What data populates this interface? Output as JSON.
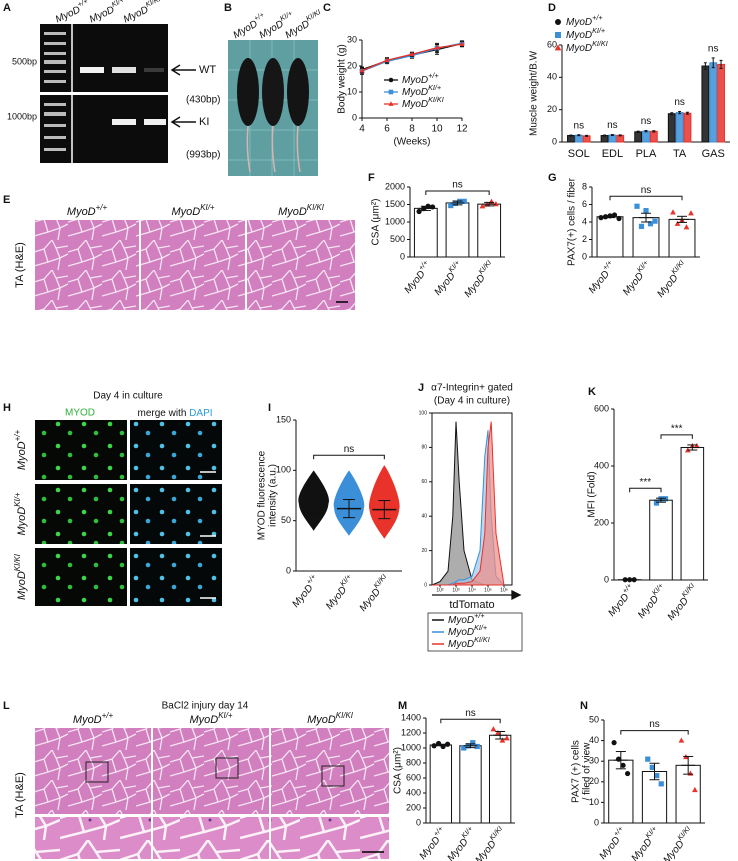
{
  "figure": {
    "genotypes": [
      {
        "text": "MyoD",
        "sup": "+/+"
      },
      {
        "text": "MyoD",
        "sup": "KI/+"
      },
      {
        "text": "MyoD",
        "sup": "KI/KI"
      }
    ],
    "A": {
      "label": "A",
      "markers": [
        "500bp",
        "1000bp"
      ],
      "bands": [
        {
          "name": "WT",
          "size": "(430bp)"
        },
        {
          "name": "KI",
          "size": "(993bp)"
        }
      ]
    },
    "B": {
      "label": "B"
    },
    "E": {
      "label": "E",
      "side_label": "TA (H&E)"
    },
    "H": {
      "label": "H",
      "title": "Day 4 in culture",
      "channel": "MYOD",
      "merge": "merge with ",
      "merge_stain": "DAPI"
    },
    "L": {
      "label": "L",
      "title": "BaCl2 injury day 14",
      "side_label": "TA (H&E)"
    }
  },
  "chart_data": [
    {
      "label": "C",
      "type": "line",
      "y_label": "Body weight (g)",
      "x_label": "(Weeks)",
      "x": [
        4,
        6,
        8,
        10,
        12
      ],
      "xlim": [
        4,
        12
      ],
      "xticks": [
        4,
        6,
        8,
        10,
        12
      ],
      "ylim": [
        0,
        30
      ],
      "yticks": [
        0,
        10,
        20,
        30
      ],
      "legend": "lower right",
      "series": [
        {
          "name": "MyoD",
          "sup": "+/+",
          "color": "#111111",
          "marker": "circle",
          "values": [
            18.6,
            22.0,
            24.2,
            26.3,
            28.6
          ],
          "errors": [
            1.0,
            0.8,
            0.9,
            1.8,
            1.0
          ]
        },
        {
          "name": "MyoD",
          "sup": "KI/+",
          "color": "#3a8fd8",
          "marker": "square",
          "values": [
            18.0,
            21.8,
            24.0,
            26.8,
            28.8
          ],
          "errors": [
            1.2,
            0.9,
            1.0,
            1.5,
            0.9
          ]
        },
        {
          "name": "MyoD",
          "sup": "KI/KI",
          "color": "#e8322a",
          "marker": "triangle",
          "values": [
            18.2,
            22.2,
            24.5,
            27.0,
            28.4
          ],
          "errors": [
            0.9,
            1.0,
            0.8,
            1.7,
            1.0
          ]
        }
      ]
    },
    {
      "label": "D",
      "type": "grouped-bar",
      "y_label": "Muscle weight/B.W",
      "categories": [
        "SOL",
        "EDL",
        "PLA",
        "TA",
        "GAS"
      ],
      "ylim": [
        0,
        60
      ],
      "yticks": [
        0,
        20,
        40,
        60
      ],
      "legend": "upper left",
      "annotations": [
        "ns",
        "ns",
        "ns",
        "ns",
        "ns"
      ],
      "series": [
        {
          "name": "MyoD",
          "sup": "+/+",
          "color": "#111111",
          "marker": "circle",
          "values": [
            4.0,
            4.0,
            6.3,
            17.5,
            47
          ],
          "errors": [
            0.3,
            0.3,
            0.4,
            0.6,
            2.0
          ]
        },
        {
          "name": "MyoD",
          "sup": "KI/+",
          "color": "#3a8fd8",
          "marker": "square",
          "values": [
            4.2,
            4.3,
            6.7,
            18.2,
            49
          ],
          "errors": [
            0.3,
            0.3,
            0.4,
            0.7,
            3.0
          ]
        },
        {
          "name": "MyoD",
          "sup": "KI/KI",
          "color": "#e8322a",
          "marker": "triangle",
          "values": [
            3.8,
            4.1,
            6.6,
            17.8,
            48
          ],
          "errors": [
            0.3,
            0.3,
            0.4,
            0.6,
            2.5
          ]
        }
      ]
    },
    {
      "label": "F",
      "type": "bar",
      "y_label": "CSA (μm²)",
      "categories": [
        {
          "text": "MyoD",
          "sup": "+/+"
        },
        {
          "text": "MyoD",
          "sup": "KI/+"
        },
        {
          "text": "MyoD",
          "sup": "KI/KI"
        }
      ],
      "ylim": [
        0,
        2000
      ],
      "yticks": [
        0,
        500,
        1000,
        1500,
        2000
      ],
      "colors": [
        "#111111",
        "#3a8fd8",
        "#e8322a"
      ],
      "markers": [
        "circle",
        "square",
        "triangle"
      ],
      "values": [
        1390,
        1545,
        1510
      ],
      "errors": [
        60,
        55,
        50
      ],
      "points": [
        [
          1300,
          1380,
          1450,
          1430
        ],
        [
          1470,
          1530,
          1590,
          1590
        ],
        [
          1450,
          1500,
          1580,
          1510
        ]
      ],
      "annotations": [
        {
          "text": "ns",
          "from": 0,
          "to": 2
        }
      ]
    },
    {
      "label": "G",
      "type": "bar",
      "y_label": "PAX7(+) cells / fiber",
      "categories": [
        {
          "text": "MyoD",
          "sup": "+/+"
        },
        {
          "text": "MyoD",
          "sup": "KI/+"
        },
        {
          "text": "MyoD",
          "sup": "KI/KI"
        }
      ],
      "ylim": [
        0,
        8
      ],
      "yticks": [
        0,
        2,
        4,
        6,
        8
      ],
      "colors": [
        "#111111",
        "#3a8fd8",
        "#e8322a"
      ],
      "markers": [
        "circle",
        "square",
        "triangle"
      ],
      "values": [
        4.6,
        4.5,
        4.3
      ],
      "errors": [
        0.1,
        0.5,
        0.35
      ],
      "points": [
        [
          4.5,
          4.6,
          4.7,
          4.8,
          4.4
        ],
        [
          5.8,
          3.5,
          5.3,
          3.8,
          4.1
        ],
        [
          5.1,
          3.8,
          4.2,
          3.4,
          5.0
        ]
      ],
      "annotations": [
        {
          "text": "ns",
          "from": 0,
          "to": 2
        }
      ]
    },
    {
      "label": "I",
      "type": "dot",
      "y_label": [
        "MYOD fluorescence",
        "intensity (a.u.)"
      ],
      "categories": [
        {
          "text": "MyoD",
          "sup": "+/+"
        },
        {
          "text": "MyoD",
          "sup": "KI/+"
        },
        {
          "text": "MyoD",
          "sup": "KI/KI"
        }
      ],
      "ylim": [
        0,
        150
      ],
      "yticks": [
        0,
        50,
        100,
        150
      ],
      "colors": [
        "#111111",
        "#3a8fd8",
        "#e8322a"
      ],
      "values": [
        67,
        62,
        61
      ],
      "errors": [
        9,
        9,
        9
      ],
      "ranges": [
        [
          40,
          100
        ],
        [
          35,
          100
        ],
        [
          32,
          105
        ]
      ],
      "annotations": [
        {
          "text": "ns",
          "from": 0,
          "to": 2
        }
      ]
    },
    {
      "label": "J",
      "type": "area",
      "title": [
        "α7-Integrin+ gated",
        "(Day 4 in culture)"
      ],
      "x_label": "tdTomato",
      "x": [
        1.5,
        2,
        2.5,
        2.8,
        3,
        3.2,
        3.5,
        4,
        4.5,
        4.8,
        5,
        5.2,
        5.5,
        6
      ],
      "xlim": [
        1.5,
        6.5
      ],
      "xticks": [
        {
          "value": 2,
          "label": "10²"
        },
        {
          "value": 3,
          "label": "10³"
        },
        {
          "value": 4,
          "label": "10⁴"
        },
        {
          "value": 5,
          "label": "10⁵"
        },
        {
          "value": 6,
          "label": "10⁶"
        }
      ],
      "ylim": [
        0,
        100
      ],
      "yticks": [
        0,
        20,
        40,
        60,
        80,
        100
      ],
      "legend": "below",
      "series": [
        {
          "name": "MyoD",
          "sup": "+/+",
          "color": "#111111",
          "fill": "#8a8a8a",
          "values": [
            0,
            2,
            8,
            40,
            95,
            60,
            20,
            3,
            1,
            0,
            0,
            0,
            0,
            0
          ]
        },
        {
          "name": "MyoD",
          "sup": "KI/+",
          "color": "#3a8fd8",
          "fill": "#9fc6ea",
          "values": [
            0,
            0,
            0,
            1,
            2,
            3,
            3,
            5,
            20,
            75,
            90,
            40,
            5,
            0
          ]
        },
        {
          "name": "MyoD",
          "sup": "KI/KI",
          "color": "#e8322a",
          "fill": "#f08a84",
          "values": [
            0,
            0,
            0,
            0,
            1,
            1,
            1,
            2,
            8,
            30,
            80,
            95,
            30,
            0
          ]
        }
      ]
    },
    {
      "label": "K",
      "type": "bar",
      "y_label": "MFI (Fold)",
      "categories": [
        {
          "text": "MyoD",
          "sup": "+/+"
        },
        {
          "text": "MyoD",
          "sup": "KI/+"
        },
        {
          "text": "MyoD",
          "sup": "KI/KI"
        }
      ],
      "ylim": [
        0,
        600
      ],
      "yticks": [
        0,
        200,
        400,
        600
      ],
      "colors": [
        "#111111",
        "#3a8fd8",
        "#e8322a"
      ],
      "markers": [
        "circle",
        "square",
        "triangle"
      ],
      "values": [
        1,
        280,
        465
      ],
      "errors": [
        0,
        7,
        9
      ],
      "points": [
        [
          1,
          1,
          1
        ],
        [
          270,
          285,
          285
        ],
        [
          455,
          470,
          470
        ]
      ],
      "annotations": [
        {
          "text": "***",
          "from": 0,
          "to": 1
        },
        {
          "text": "***",
          "from": 1,
          "to": 2
        }
      ]
    },
    {
      "label": "M",
      "type": "bar",
      "y_label": "CSA (μm²)",
      "categories": [
        {
          "text": "MyoD",
          "sup": "+/+"
        },
        {
          "text": "MyoD",
          "sup": "KI/+"
        },
        {
          "text": "MyoD",
          "sup": "KI/KI"
        }
      ],
      "ylim": [
        0,
        1400
      ],
      "yticks": [
        0,
        200,
        400,
        600,
        800,
        1000,
        1200,
        1400
      ],
      "colors": [
        "#111111",
        "#3a8fd8",
        "#e8322a"
      ],
      "markers": [
        "circle",
        "square",
        "triangle"
      ],
      "values": [
        1040,
        1030,
        1170
      ],
      "errors": [
        10,
        25,
        50
      ],
      "points": [
        [
          1030,
          1060,
          1020,
          1050
        ],
        [
          1000,
          1030,
          1070,
          1020
        ],
        [
          1250,
          1200,
          1100,
          1130
        ]
      ],
      "annotations": [
        {
          "text": "ns",
          "from": 0,
          "to": 2
        }
      ]
    },
    {
      "label": "N",
      "type": "bar",
      "y_label": [
        "PAX7 (+) cells",
        "/ filed of view"
      ],
      "categories": [
        {
          "text": "MyoD",
          "sup": "+/+"
        },
        {
          "text": "MyoD",
          "sup": "KI/+"
        },
        {
          "text": "MyoD",
          "sup": "KI/KI"
        }
      ],
      "ylim": [
        0,
        50
      ],
      "yticks": [
        0,
        10,
        20,
        30,
        40,
        50
      ],
      "colors": [
        "#111111",
        "#3a8fd8",
        "#e8322a"
      ],
      "markers": [
        "circle",
        "square",
        "triangle"
      ],
      "values": [
        30.5,
        25,
        28
      ],
      "errors": [
        4.2,
        4.0,
        4.3
      ],
      "points": [
        [
          39,
          31,
          28,
          24
        ],
        [
          31,
          27,
          23,
          19
        ],
        [
          40,
          32,
          24,
          16
        ]
      ],
      "annotations": [
        {
          "text": "ns",
          "from": 0,
          "to": 2
        }
      ]
    }
  ]
}
